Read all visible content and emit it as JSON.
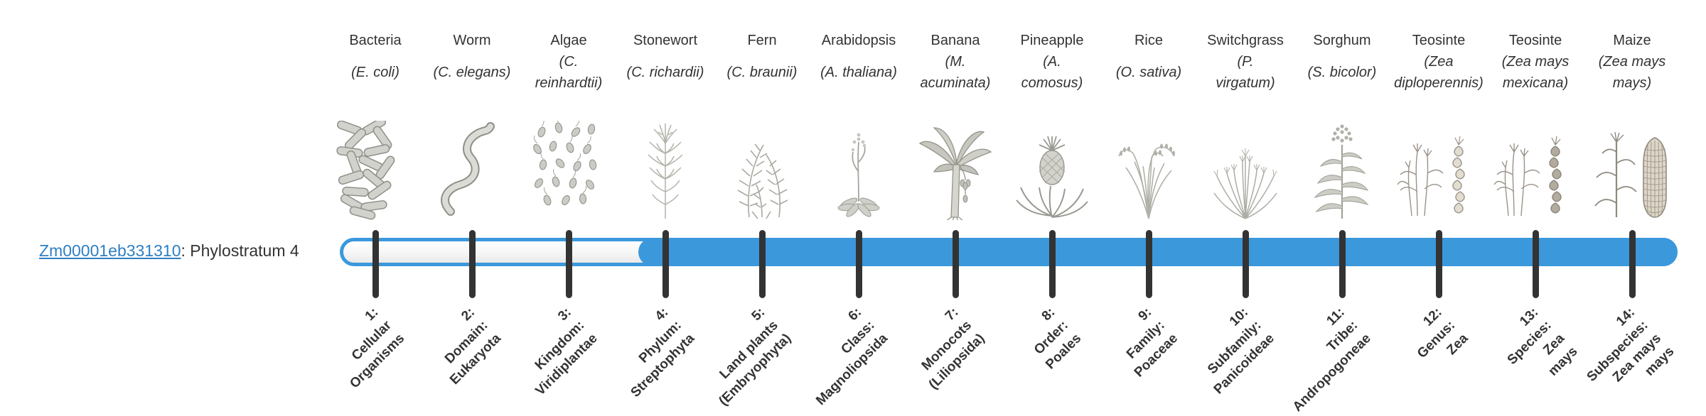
{
  "gene": {
    "id": "Zm00001eb331310",
    "rest": ": Phylostratum 4"
  },
  "timeline": {
    "total_strata": 14,
    "fill_start_stratum": 4
  },
  "colors": {
    "bar_blue": "#3b98db",
    "tick": "#333333",
    "text": "#333333",
    "link": "#2e7fc4"
  },
  "organisms": [
    {
      "common": "Bacteria",
      "sci_lines": [
        "(E. coli)"
      ],
      "icon": "bacteria"
    },
    {
      "common": "Worm",
      "sci_lines": [
        "(C. elegans)"
      ],
      "icon": "worm"
    },
    {
      "common": "Algae",
      "sci_lines": [
        "(C.",
        "reinhardtii)"
      ],
      "icon": "algae"
    },
    {
      "common": "Stonewort",
      "sci_lines": [
        "(C. richardii)"
      ],
      "icon": "stonewort"
    },
    {
      "common": "Fern",
      "sci_lines": [
        "(C. braunii)"
      ],
      "icon": "fern"
    },
    {
      "common": "Arabidopsis",
      "sci_lines": [
        "(A. thaliana)"
      ],
      "icon": "arabidopsis"
    },
    {
      "common": "Banana",
      "sci_lines": [
        "(M.",
        "acuminata)"
      ],
      "icon": "banana"
    },
    {
      "common": "Pineapple",
      "sci_lines": [
        "(A.",
        "comosus)"
      ],
      "icon": "pineapple"
    },
    {
      "common": "Rice",
      "sci_lines": [
        "(O. sativa)"
      ],
      "icon": "rice"
    },
    {
      "common": "Switchgrass",
      "sci_lines": [
        "(P.",
        "virgatum)"
      ],
      "icon": "switchgrass"
    },
    {
      "common": "Sorghum",
      "sci_lines": [
        "(S. bicolor)"
      ],
      "icon": "sorghum"
    },
    {
      "common": "Teosinte",
      "sci_lines": [
        "(Zea",
        "diploperennis)"
      ],
      "icon": "teosinte-diploperennis"
    },
    {
      "common": "Teosinte",
      "sci_lines": [
        "(Zea mays",
        "mexicana)"
      ],
      "icon": "teosinte-mexicana"
    },
    {
      "common": "Maize",
      "sci_lines": [
        "(Zea mays",
        "mays)"
      ],
      "icon": "maize"
    }
  ],
  "phylostrata": [
    {
      "lines": [
        "1:",
        "Cellular",
        "Organisms"
      ]
    },
    {
      "lines": [
        "2:",
        "Domain:",
        "Eukaryota"
      ]
    },
    {
      "lines": [
        "3:",
        "Kingdom:",
        "Viridiplantae"
      ]
    },
    {
      "lines": [
        "4:",
        "Phylum:",
        "Streptophyta"
      ]
    },
    {
      "lines": [
        "5:",
        "Land plants",
        "(Embryophyta)"
      ]
    },
    {
      "lines": [
        "6:",
        "Class:",
        "Magnoliopsida"
      ]
    },
    {
      "lines": [
        "7:",
        "Monocots",
        "(Liliopsida)"
      ]
    },
    {
      "lines": [
        "8:",
        "Order:",
        "Poales"
      ]
    },
    {
      "lines": [
        "9:",
        "Family:",
        "Poaceae"
      ]
    },
    {
      "lines": [
        "10:",
        "Subfamily:",
        "Panicoideae"
      ]
    },
    {
      "lines": [
        "11:",
        "Tribe:",
        "Andropogoneae"
      ]
    },
    {
      "lines": [
        "12:",
        "Genus:",
        "Zea"
      ]
    },
    {
      "lines": [
        "13:",
        "Species:",
        "Zea",
        "mays"
      ]
    },
    {
      "lines": [
        "14:",
        "Subspecies:",
        "Zea mays",
        "mays"
      ]
    }
  ]
}
